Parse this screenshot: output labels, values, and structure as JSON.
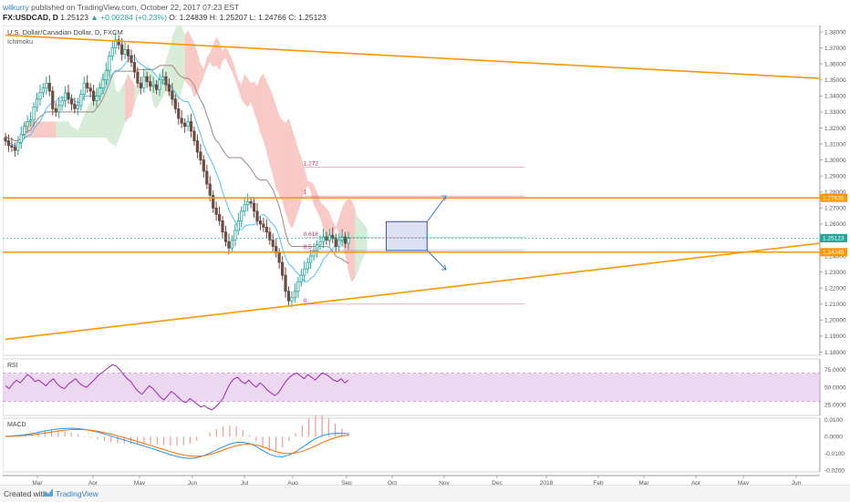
{
  "header": {
    "author": "wilkurry",
    "published_text": " published on TradingView.com, October 22, 2017 07:23 EST",
    "symbol": "FX:USDCAD, D",
    "ohlc_text": " 1.25123 ",
    "change_text": "▲ +0.00284 (+0.23%)",
    "values_text": " O: 1.24839 H: 1.25207 L: 1.24766 C: 1.25123"
  },
  "footer": {
    "created_with": "Created with",
    "brand": "TradingView"
  },
  "colors": {
    "trendline": "#ff9800",
    "price_up": "#26a69a",
    "price_down": "#6d4c41",
    "rsi": "#9c27b0",
    "rsi_band": "#e1bee7",
    "macd_line": "#2196f3",
    "signal_line": "#ff6d00",
    "histogram": "#ef9a9a",
    "cloud_bear": "#f5b7b1",
    "cloud_bull": "#c8e6c9",
    "tenkan": "#4fc3f7",
    "kijun": "#a1887f",
    "fib_line": "#d81b60",
    "box": "#3f51b5",
    "arrow": "#3f7fc1"
  },
  "chart_data": [
    {
      "type": "candlestick",
      "title": "U.S. Dollar/Canadian Dollar, D, FXCM",
      "indicator_label": "Ichimoku",
      "x_labels": [
        "Mar",
        "Apr",
        "May",
        "Jun",
        "Jul",
        "Aug",
        "Sep",
        "Oct",
        "Nov",
        "Dec",
        "2018",
        "Feb",
        "Mar",
        "Apr",
        "May",
        "Jun"
      ],
      "y_ticks": [
        "1.38000",
        "1.37000",
        "1.36000",
        "1.35000",
        "1.34000",
        "1.33000",
        "1.32000",
        "1.31000",
        "1.30000",
        "1.29000",
        "1.28000",
        "1.27000",
        "1.26000",
        "1.25000",
        "1.24000",
        "1.23000",
        "1.22000",
        "1.21000",
        "1.20000",
        "1.19000",
        "1.18000"
      ],
      "ylim": [
        1.178,
        1.384
      ],
      "price_tags": [
        {
          "label": "1.27635",
          "value": 1.27635,
          "color": "#ff9800"
        },
        {
          "label": "1.25123",
          "value": 1.25123,
          "color": "#26a69a"
        },
        {
          "label": "1.24245",
          "value": 1.24245,
          "color": "#ff9800"
        }
      ],
      "horizontal_levels": [
        1.27635,
        1.24245
      ],
      "trendlines": [
        {
          "from": [
            0,
            1.378
          ],
          "to": [
            165,
            1.351
          ]
        },
        {
          "from": [
            0,
            1.188
          ],
          "to": [
            165,
            1.248
          ]
        }
      ],
      "fibonacci": [
        {
          "label": "1.272",
          "value": 1.2955
        },
        {
          "label": "1",
          "value": 1.2775
        },
        {
          "label": "0.618",
          "value": 1.2515
        },
        {
          "label": "0.5",
          "value": 1.2435
        },
        {
          "label": "0",
          "value": 1.21
        }
      ],
      "close_series": [
        1.312,
        1.309,
        1.308,
        1.306,
        1.311,
        1.316,
        1.321,
        1.324,
        1.325,
        1.333,
        1.338,
        1.342,
        1.345,
        1.348,
        1.343,
        1.332,
        1.33,
        1.334,
        1.337,
        1.342,
        1.338,
        1.335,
        1.332,
        1.334,
        1.341,
        1.348,
        1.345,
        1.343,
        1.337,
        1.34,
        1.345,
        1.35,
        1.356,
        1.365,
        1.37,
        1.375,
        1.372,
        1.366,
        1.369,
        1.365,
        1.361,
        1.355,
        1.348,
        1.345,
        1.352,
        1.349,
        1.346,
        1.347,
        1.344,
        1.35,
        1.352,
        1.347,
        1.343,
        1.338,
        1.332,
        1.326,
        1.323,
        1.321,
        1.324,
        1.318,
        1.312,
        1.305,
        1.3,
        1.293,
        1.285,
        1.278,
        1.27,
        1.266,
        1.262,
        1.255,
        1.249,
        1.245,
        1.25,
        1.256,
        1.262,
        1.268,
        1.272,
        1.274,
        1.273,
        1.268,
        1.262,
        1.26,
        1.258,
        1.255,
        1.25,
        1.246,
        1.242,
        1.236,
        1.228,
        1.218,
        1.212,
        1.214,
        1.218,
        1.224,
        1.228,
        1.232,
        1.236,
        1.24,
        1.243,
        1.247,
        1.249,
        1.252,
        1.25,
        1.253,
        1.251,
        1.246,
        1.25,
        1.252,
        1.248,
        1.251
      ]
    },
    {
      "type": "line",
      "title": "RSI",
      "y_ticks": [
        "75.0000",
        "50.0000",
        "25.0000"
      ],
      "ylim": [
        10,
        90
      ],
      "band": [
        30,
        70
      ],
      "series": [
        {
          "values": [
            52,
            48,
            55,
            60,
            56,
            62,
            68,
            64,
            58,
            60,
            56,
            52,
            58,
            62,
            55,
            50,
            48,
            54,
            58,
            62,
            56,
            52,
            50,
            55,
            60,
            66,
            70,
            74,
            78,
            82,
            80,
            75,
            68,
            62,
            58,
            50,
            44,
            40,
            46,
            52,
            48,
            42,
            36,
            32,
            38,
            44,
            40,
            35,
            30,
            28,
            34,
            30,
            26,
            22,
            24,
            20,
            18,
            22,
            28,
            34,
            46,
            56,
            62,
            64,
            58,
            55,
            60,
            54,
            50,
            56,
            52,
            46,
            42,
            38,
            42,
            50,
            58,
            64,
            68,
            70,
            66,
            62,
            68,
            64,
            60,
            66,
            70,
            68,
            64,
            60,
            58,
            62,
            56,
            60
          ]
        }
      ]
    },
    {
      "type": "line",
      "title": "MACD",
      "y_ticks": [
        "0.0100",
        "0.0000",
        "-0.0100",
        "-0.0200"
      ],
      "ylim": [
        -0.021,
        0.011
      ],
      "series": [
        {
          "values": [
            0.0002,
            0.0004,
            0.0007,
            0.0012,
            0.0018,
            0.0026,
            0.0034,
            0.0041,
            0.0046,
            0.0049,
            0.005,
            0.0048,
            0.0043,
            0.0036,
            0.0027,
            0.0016,
            0.0004,
            -0.0008,
            -0.002,
            -0.0032,
            -0.0044,
            -0.0056,
            -0.0068,
            -0.0081,
            -0.0094,
            -0.0107,
            -0.0118,
            -0.0126,
            -0.0129,
            -0.0125,
            -0.0114,
            -0.0098,
            -0.0079,
            -0.006,
            -0.0044,
            -0.0034,
            -0.0033,
            -0.0041,
            -0.0058,
            -0.0082,
            -0.0104,
            -0.0118,
            -0.012,
            -0.011,
            -0.009,
            -0.0064,
            -0.0036,
            -0.0012,
            0.0006,
            0.0016,
            0.002,
            0.002,
            0.0018
          ]
        },
        {
          "values": [
            0.0001,
            0.0002,
            0.0004,
            0.0007,
            0.0011,
            0.0016,
            0.0022,
            0.0028,
            0.0034,
            0.0039,
            0.0042,
            0.0043,
            0.0042,
            0.0038,
            0.0032,
            0.0024,
            0.0015,
            0.0005,
            -0.0006,
            -0.0017,
            -0.0029,
            -0.0041,
            -0.0053,
            -0.0065,
            -0.0077,
            -0.0089,
            -0.01,
            -0.0109,
            -0.0115,
            -0.0117,
            -0.0114,
            -0.0106,
            -0.0094,
            -0.008,
            -0.0066,
            -0.0054,
            -0.0046,
            -0.0044,
            -0.0049,
            -0.006,
            -0.0075,
            -0.0089,
            -0.0099,
            -0.0101,
            -0.0097,
            -0.0087,
            -0.0072,
            -0.0054,
            -0.0036,
            -0.002,
            -0.0006,
            0.0004,
            0.001
          ]
        }
      ]
    }
  ]
}
